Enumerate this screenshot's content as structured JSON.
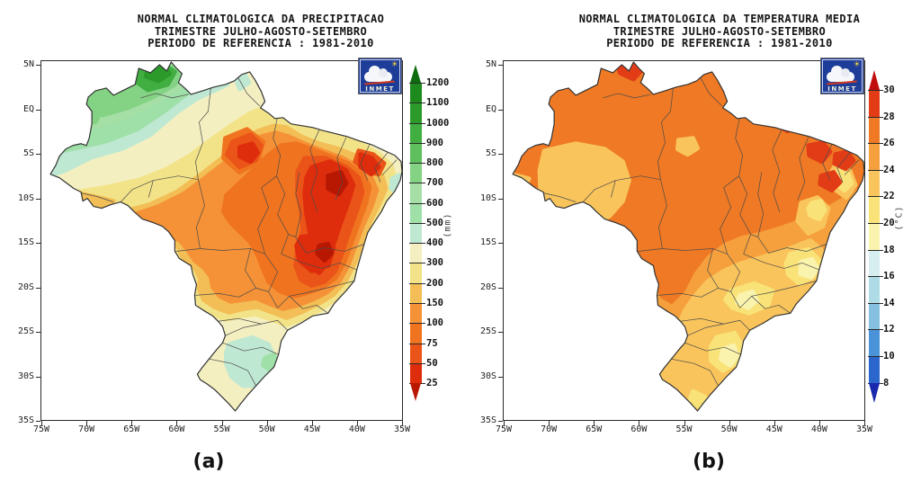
{
  "panels": [
    {
      "title_lines": [
        "NORMAL CLIMATOLOGICA DA PRECIPITACAO",
        "TRIMESTRE JULHO-AGOSTO-SETEMBRO",
        "PERIODO DE REFERENCIA : 1981-2010"
      ],
      "panel_label": "(a)",
      "logo_text": "INMET",
      "colorbar": {
        "unit": "(mm)"
      }
    },
    {
      "title_lines": [
        "NORMAL CLIMATOLOGICA DA TEMPERATURA MEDIA",
        "TRIMESTRE JULHO-AGOSTO-SETEMBRO",
        "PERIODO DE REFERENCIA : 1981-2010"
      ],
      "panel_label": "(b)",
      "logo_text": "INMET",
      "colorbar": {
        "unit": "(°C)"
      }
    }
  ],
  "chart_data": [
    {
      "type": "heatmap",
      "title": "NORMAL CLIMATOLOGICA DA PRECIPITACAO",
      "subtitle": "TRIMESTRE JULHO-AGOSTO-SETEMBRO",
      "reference_period": "1981-2010",
      "region": "Brazil",
      "unit": "mm",
      "legend_position": "right",
      "grid": false,
      "x": {
        "label": "longitude",
        "ticks": [
          "75W",
          "70W",
          "65W",
          "60W",
          "55W",
          "50W",
          "45W",
          "40W",
          "35W"
        ]
      },
      "y": {
        "label": "latitude",
        "ticks": [
          "5N",
          "EQ",
          "5S",
          "10S",
          "15S",
          "20S",
          "25S",
          "30S",
          "35S"
        ]
      },
      "levels": [
        25,
        50,
        75,
        100,
        150,
        200,
        300,
        400,
        500,
        600,
        700,
        800,
        900,
        1000,
        1100,
        1200
      ],
      "palette_low_to_high": [
        "#b81702",
        "#de2d0c",
        "#ea5418",
        "#f0741f",
        "#f59237",
        "#f2be55",
        "#f3e388",
        "#f3efc0",
        "#bfe8d2",
        "#9fdfa8",
        "#a6dfa6",
        "#84d284",
        "#5fbf5f",
        "#41ae41",
        "#2b9a2b",
        "#1d8a1d",
        "#0e6b0e"
      ],
      "estimated_regions": [
        {
          "area": "north Roraima / upper Rio Negro (NW)",
          "value_mm": "700-1200"
        },
        {
          "area": "northwest Amazonas band",
          "value_mm": "400-700"
        },
        {
          "area": "west-central Amazonia",
          "value_mm": "200-400"
        },
        {
          "area": "central Brazil (Mato Grosso, Goias, Tocantins)",
          "value_mm": "75-200"
        },
        {
          "area": "west Bahia / north Minas Gerais / northeast interior",
          "value_mm": "25-75"
        },
        {
          "area": "south Para dry spot",
          "value_mm": "25-75"
        },
        {
          "area": "east northeast coastal spot",
          "value_mm": "400-500"
        },
        {
          "area": "Sao Paulo / Parana",
          "value_mm": "200-400"
        },
        {
          "area": "Rio Grande do Sul core",
          "value_mm": "400-600"
        }
      ]
    },
    {
      "type": "heatmap",
      "title": "NORMAL CLIMATOLOGICA DA TEMPERATURA MEDIA",
      "subtitle": "TRIMESTRE JULHO-AGOSTO-SETEMBRO",
      "reference_period": "1981-2010",
      "region": "Brazil",
      "unit": "°C",
      "legend_position": "right",
      "grid": false,
      "x": {
        "label": "longitude",
        "ticks": [
          "75W",
          "70W",
          "65W",
          "60W",
          "55W",
          "50W",
          "45W",
          "40W",
          "35W"
        ]
      },
      "y": {
        "label": "latitude",
        "ticks": [
          "5N",
          "EQ",
          "5S",
          "10S",
          "15S",
          "20S",
          "25S",
          "30S",
          "35S"
        ]
      },
      "levels": [
        8,
        10,
        12,
        14,
        16,
        18,
        20,
        22,
        24,
        26,
        28,
        30
      ],
      "palette_low_to_high": [
        "#1929ae",
        "#2b66cc",
        "#4b93d9",
        "#86c0e0",
        "#aedbe6",
        "#d6eef0",
        "#faf3ae",
        "#f9e379",
        "#f9c45c",
        "#f5a03d",
        "#ef7924",
        "#e23c17",
        "#c20d0d"
      ],
      "estimated_regions": [
        {
          "area": "most of Amazonia / north / northeast",
          "value_c": "26-28"
        },
        {
          "area": "north Roraima, coastal Maranhao, northeast interior spots",
          "value_c": "28-30"
        },
        {
          "area": "western Amazonas / Acre",
          "value_c": "24-26"
        },
        {
          "area": "central-south (MS, SP, southern MG)",
          "value_c": "22-24"
        },
        {
          "area": "southeast highlands and south region patches",
          "value_c": "18-22"
        }
      ]
    }
  ]
}
